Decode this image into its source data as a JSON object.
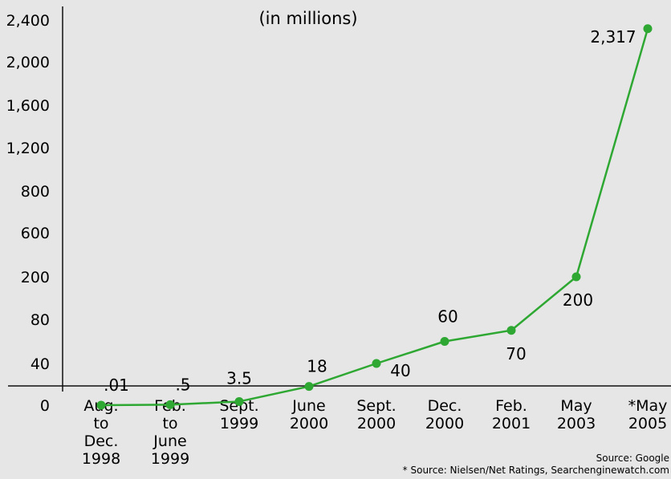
{
  "chart_data": {
    "type": "line",
    "subtitle": "(in millions)",
    "yticks": [
      "0",
      "40",
      "80",
      "200",
      "600",
      "800",
      "1,200",
      "1,600",
      "2,000",
      "2,400"
    ],
    "categories": [
      [
        "Aug.",
        "to",
        "Dec.",
        "1998"
      ],
      [
        "Feb.",
        "to",
        "June",
        "1999"
      ],
      [
        "Sept.",
        "1999"
      ],
      [
        "June",
        "2000"
      ],
      [
        "Sept.",
        "2000"
      ],
      [
        "Dec.",
        "2000"
      ],
      [
        "Feb.",
        "2001"
      ],
      [
        "May",
        "2003"
      ],
      [
        "*May",
        "2005"
      ]
    ],
    "values": [
      0.01,
      0.5,
      3.5,
      18,
      40,
      60,
      70,
      200,
      2317
    ],
    "value_labels": [
      ".01",
      ".5",
      "3.5",
      "18",
      "40",
      "60",
      "70",
      "200",
      "2,317"
    ],
    "series_color": "#2ea832",
    "grid": false,
    "note": "y-axis tick spacing is non-uniform; values are placed according to the printed tick labels",
    "sources": [
      "Source: Google",
      "* Source: Nielsen/Net Ratings, Searchenginewatch.com"
    ]
  }
}
